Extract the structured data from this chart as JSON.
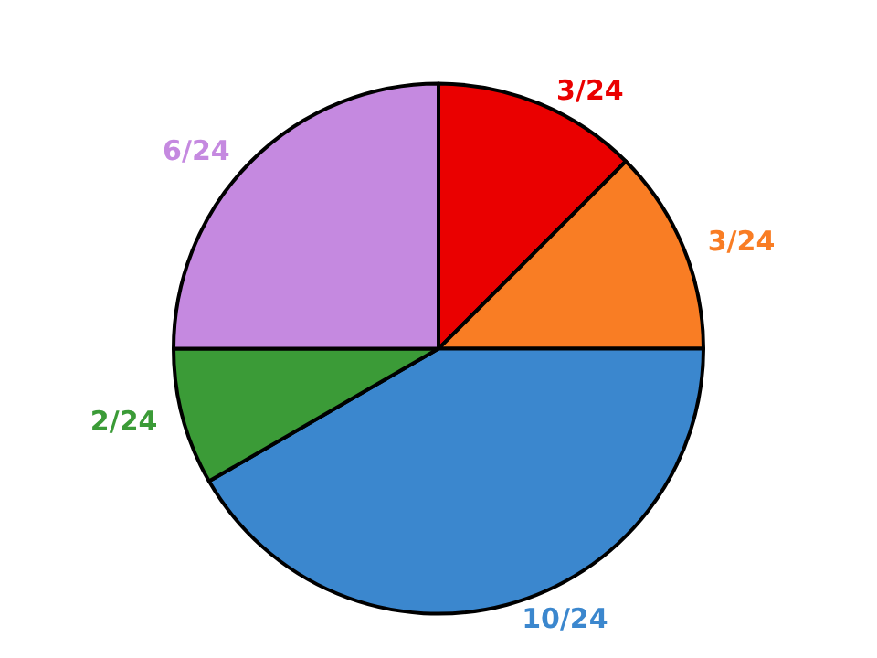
{
  "chart_data": {
    "type": "pie",
    "categories": [
      null,
      null,
      null,
      null,
      null
    ],
    "values": [
      12.5,
      12.5,
      41.67,
      8.33,
      25
    ],
    "value_labels": [
      "3/24",
      "3/24",
      "10/24",
      "2/24",
      "6/24"
    ],
    "colors": [
      "#ea0000",
      "#f97d24",
      "#3b87ce",
      "#3b9b37",
      "#c589e0"
    ]
  }
}
